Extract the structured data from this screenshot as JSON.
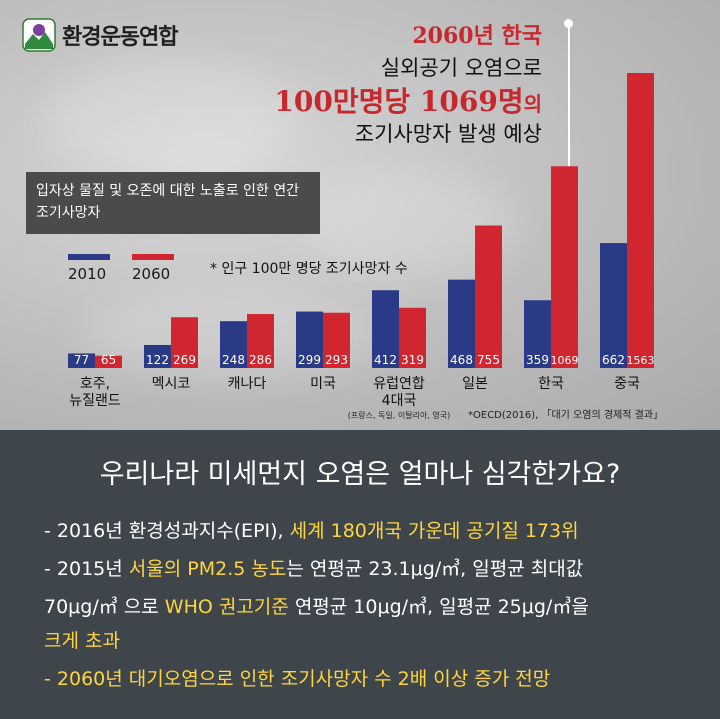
{
  "brand": {
    "name": "환경운동연합"
  },
  "headline": {
    "line1": "2060년 한국",
    "line2": "실외공기 오염으로",
    "line3_main": "100만명당 1069명",
    "line3_suffix": "의",
    "line4": "조기사망자 발생 예상"
  },
  "colors": {
    "series_2010": "#2b3a86",
    "series_2060": "#d0262f",
    "highlight": "#ffd53d",
    "bottom_bg": "#3e454b"
  },
  "chart_data": {
    "type": "bar",
    "title": "입자상 물질 및 오존에 대한 노출로 인한 연간 조기사망자",
    "note": "* 인구 100만 명당 조기사망자 수",
    "source": "*OECD(2016), 「대기 오염의 경제적 결과」",
    "categories": [
      "호주, 뉴질랜드",
      "멕시코",
      "캐나다",
      "미국",
      "유럽연합 4대국",
      "일본",
      "한국",
      "중국"
    ],
    "category_lines": [
      [
        "호주,",
        "뉴질랜드"
      ],
      [
        "멕시코"
      ],
      [
        "캐나다"
      ],
      [
        "미국"
      ],
      [
        "유럽연합",
        "4대국"
      ],
      [
        "일본"
      ],
      [
        "한국"
      ],
      [
        "중국"
      ]
    ],
    "category_footnote": {
      "category": "유럽연합 4대국",
      "text": "(프랑스, 독일, 이탈리아, 영국)"
    },
    "series": [
      {
        "name": "2010",
        "values": [
          77,
          122,
          248,
          299,
          412,
          468,
          359,
          662
        ]
      },
      {
        "name": "2060",
        "values": [
          65,
          269,
          286,
          293,
          319,
          755,
          1069,
          1563
        ]
      }
    ],
    "ylim": [
      0,
      1563
    ],
    "grid": false,
    "legend": "top-left"
  },
  "question": "우리나라 미세먼지 오염은 얼마나 심각한가요?",
  "bullets": {
    "b1_a": "- 2016년 환경성과지수(EPI), ",
    "b1_b": "세계 180개국 가운데 공기질 173위",
    "b2_a": "- 2015년 ",
    "b2_b": "서울의 PM2.5 농도",
    "b2_c": "는 연평균 23.1μg/㎥, 일평균 최대값",
    "b3_a": "70μg/㎥ 으로 ",
    "b3_b": "WHO 권고기준",
    "b3_c": " 연평균 10μg/㎥, 일평균 25μg/㎥을",
    "b4_a": "크게 초과",
    "b5_a": "- 2060년 대기오염으로 인한 조기사망자 수 2배 이상 증가 전망"
  }
}
